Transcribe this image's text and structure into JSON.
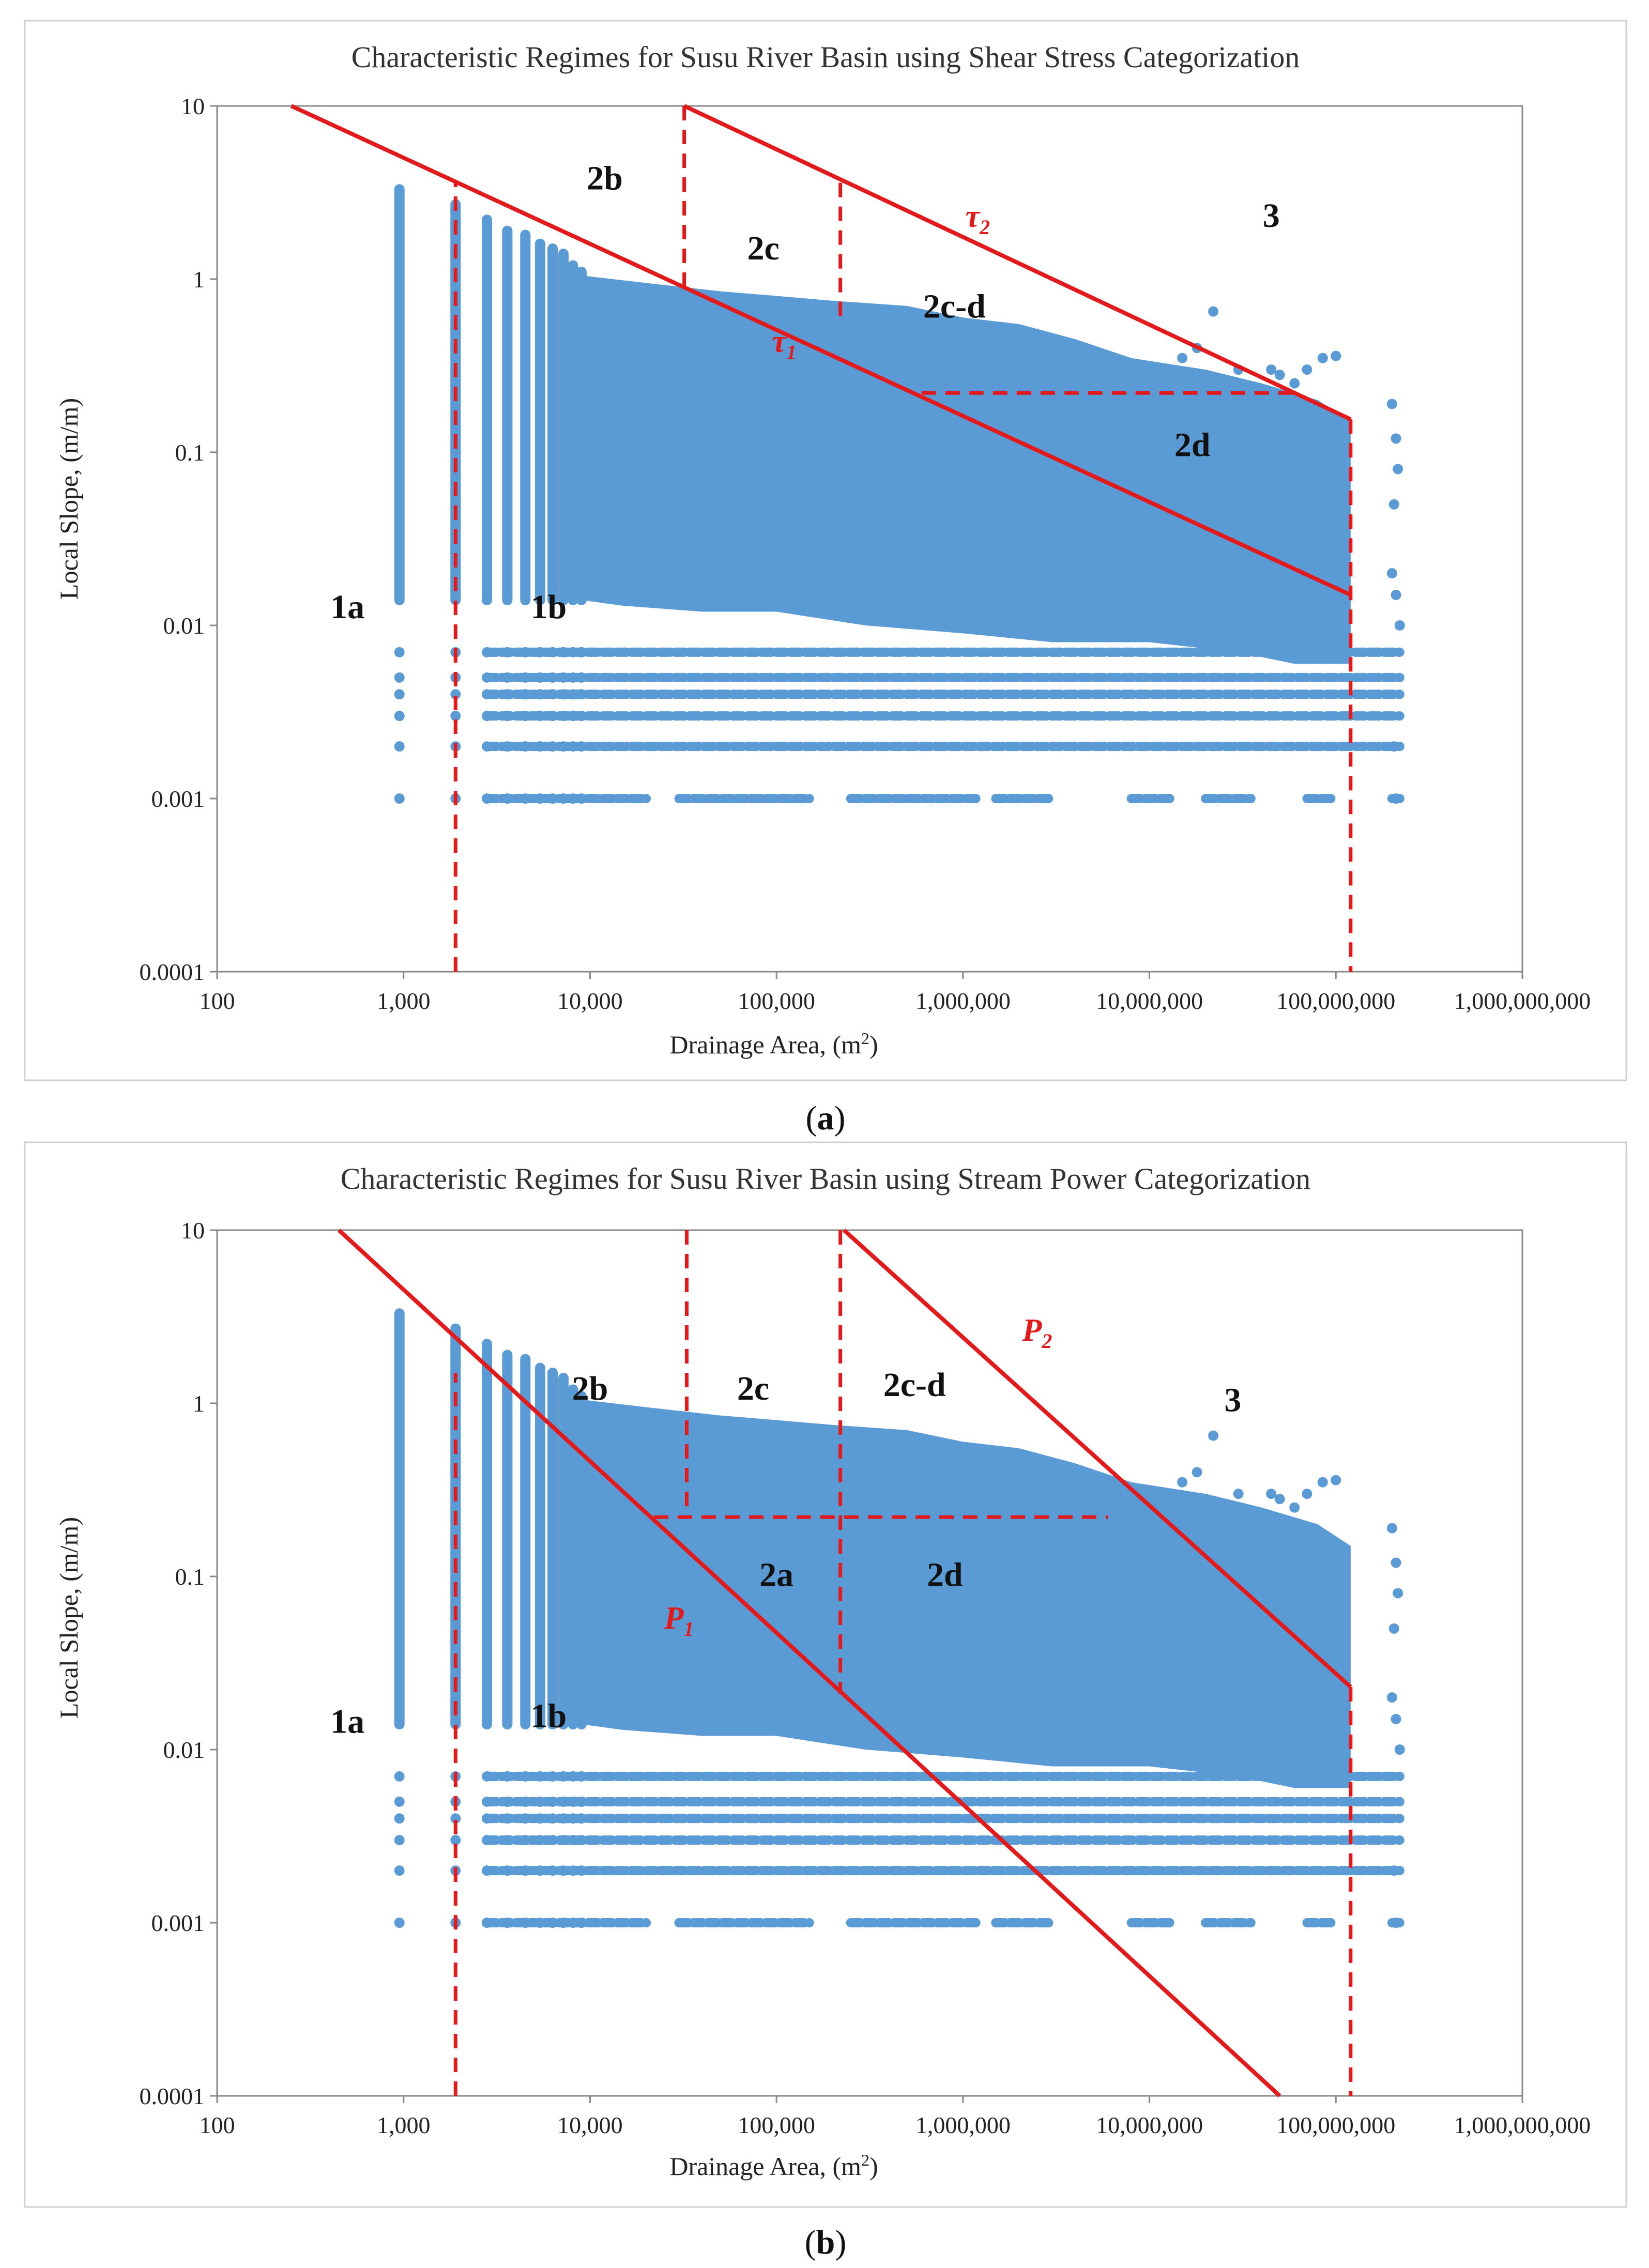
{
  "colors": {
    "points": "#5b9bd5",
    "lines": "#e31a1c",
    "text": "#222222"
  },
  "chart_data": [
    {
      "id": "a",
      "type": "scatter",
      "title": "Characteristic  Regimes  for  Susu  River  Basin  using  Shear  Stress  Categorization",
      "xlabel": "Drainage  Area,  (m",
      "xlabel_sup": "2",
      "xlabel_end": ")",
      "ylabel": "Local Slope, (m/m)",
      "xscale": "log",
      "yscale": "log",
      "xlim": [
        100,
        1000000000
      ],
      "ylim": [
        0.0001,
        10
      ],
      "xticks": [
        100,
        1000,
        10000,
        100000,
        1000000,
        10000000,
        100000000,
        1000000000
      ],
      "xtick_labels": [
        "100",
        "1,000",
        "10,000",
        "100,000",
        "1,000,000",
        "10,000,000",
        "100,000,000",
        "1,000,000,000"
      ],
      "yticks": [
        0.0001,
        0.001,
        0.01,
        0.1,
        1,
        10
      ],
      "ytick_labels": [
        "0.0001",
        "0.001",
        "0.01",
        "0.1",
        "1",
        "10"
      ],
      "caption": "a",
      "columns_x": [
        950,
        1900,
        2800,
        3600,
        4500,
        5400,
        6300,
        7200,
        8100,
        9000
      ],
      "columns_top": [
        3.3,
        2.7,
        2.2,
        1.9,
        1.8,
        1.6,
        1.5,
        1.4,
        1.2,
        1.1
      ],
      "cloud_top": [
        [
          9000,
          1.05
        ],
        [
          20000,
          0.95
        ],
        [
          50000,
          0.85
        ],
        [
          100000,
          0.8
        ],
        [
          200000,
          0.75
        ],
        [
          500000,
          0.7
        ],
        [
          1000000,
          0.6
        ],
        [
          2000000,
          0.55
        ],
        [
          4000000,
          0.45
        ],
        [
          8000000,
          0.35
        ],
        [
          20000000,
          0.3
        ],
        [
          40000000,
          0.25
        ],
        [
          80000000,
          0.2
        ],
        [
          120000000,
          0.15
        ]
      ],
      "cloud_bottom": [
        [
          120000000,
          0.006
        ],
        [
          60000000,
          0.006
        ],
        [
          30000000,
          0.007
        ],
        [
          10000000,
          0.008
        ],
        [
          3000000,
          0.008
        ],
        [
          1000000,
          0.009
        ],
        [
          300000,
          0.01
        ],
        [
          100000,
          0.012
        ],
        [
          40000,
          0.012
        ],
        [
          15000,
          0.013
        ],
        [
          9000,
          0.014
        ]
      ],
      "bands_y": [
        0.007,
        0.005,
        0.004,
        0.003,
        0.002
      ],
      "band_x_range": [
        2800,
        220000000
      ],
      "band_001_segments": [
        [
          2800,
          20000
        ],
        [
          30000,
          150000
        ],
        [
          250000,
          1200000
        ],
        [
          1500000,
          3000000
        ],
        [
          8000000,
          13000000
        ],
        [
          20000000,
          35000000
        ],
        [
          70000000,
          100000000
        ],
        [
          200000000,
          220000000
        ]
      ],
      "scatter_extra": [
        [
          15000000,
          0.35
        ],
        [
          18000000,
          0.4
        ],
        [
          22000000,
          0.65
        ],
        [
          30000000,
          0.3
        ],
        [
          45000000,
          0.3
        ],
        [
          50000000,
          0.28
        ],
        [
          60000000,
          0.25
        ],
        [
          70000000,
          0.3
        ],
        [
          85000000,
          0.35
        ],
        [
          100000000,
          0.36
        ],
        [
          200000000,
          0.19
        ],
        [
          210000000,
          0.12
        ],
        [
          215000000,
          0.08
        ],
        [
          205000000,
          0.05
        ],
        [
          200000000,
          0.02
        ],
        [
          210000000,
          0.015
        ],
        [
          220000000,
          0.01
        ],
        [
          205000000,
          0.002
        ],
        [
          210000000,
          0.001
        ],
        [
          12000000,
          0.12
        ],
        [
          25000000,
          0.05
        ],
        [
          35000000,
          0.03
        ],
        [
          60000000,
          0.04
        ],
        [
          80000000,
          0.015
        ]
      ],
      "solid_lines": [
        {
          "name": "tau1",
          "from": [
            250,
            10
          ],
          "to": [
            120000000,
            0.015
          ]
        },
        {
          "name": "tau2",
          "from": [
            32000,
            10
          ],
          "to": [
            120000000,
            0.155
          ]
        }
      ],
      "dashed_lines": [
        {
          "from": [
            1900,
            0.0001
          ],
          "to": [
            1900,
            3.6
          ]
        },
        {
          "from": [
            32000,
            10
          ],
          "to": [
            32000,
            0.88
          ]
        },
        {
          "from": [
            220000,
            3.6
          ],
          "to": [
            220000,
            0.6
          ]
        },
        {
          "from": [
            600000,
            0.22
          ],
          "to": [
            60000000,
            0.22
          ]
        },
        {
          "from": [
            120000000,
            0.155
          ],
          "to": [
            120000000,
            0.0001
          ]
        }
      ],
      "region_labels": [
        {
          "text": "2b",
          "x": 12000,
          "y": 3.3
        },
        {
          "text": "2c",
          "x": 85000,
          "y": 1.3
        },
        {
          "text": "3",
          "x": 45000000,
          "y": 2.0
        },
        {
          "text": "2c-d",
          "x": 900000,
          "y": 0.6
        },
        {
          "text": "2d",
          "x": 17000000,
          "y": 0.095
        },
        {
          "text": "1a",
          "x": 500,
          "y": 0.011
        },
        {
          "text": "1b",
          "x": 6000,
          "y": 0.011
        }
      ],
      "line_labels": [
        {
          "text": "τ",
          "sub": "1",
          "x": 110000,
          "y": 0.38
        },
        {
          "text": "τ",
          "sub": "2",
          "x": 1200000,
          "y": 2.0
        }
      ]
    },
    {
      "id": "b",
      "type": "scatter",
      "title": "Characteristic  Regimes  for  Susu  River  Basin  using  Stream  Power  Categorization",
      "xlabel": "Drainage  Area,  (m",
      "xlabel_sup": "2",
      "xlabel_end": ")",
      "ylabel": "Local Slope, (m/m)",
      "xscale": "log",
      "yscale": "log",
      "xlim": [
        100,
        1000000000
      ],
      "ylim": [
        0.0001,
        10
      ],
      "xticks": [
        100,
        1000,
        10000,
        100000,
        1000000,
        10000000,
        100000000,
        1000000000
      ],
      "xtick_labels": [
        "100",
        "1,000",
        "10,000",
        "100,000",
        "1,000,000",
        "10,000,000",
        "100,000,000",
        "1,000,000,000"
      ],
      "yticks": [
        0.0001,
        0.001,
        0.01,
        0.1,
        1,
        10
      ],
      "ytick_labels": [
        "0.0001",
        "0.001",
        "0.01",
        "0.1",
        "1",
        "10"
      ],
      "caption": "b",
      "columns_x": [
        950,
        1900,
        2800,
        3600,
        4500,
        5400,
        6300,
        7200,
        8100,
        9000
      ],
      "columns_top": [
        3.3,
        2.7,
        2.2,
        1.9,
        1.8,
        1.6,
        1.5,
        1.4,
        1.2,
        1.1
      ],
      "cloud_top": [
        [
          9000,
          1.05
        ],
        [
          20000,
          0.95
        ],
        [
          50000,
          0.85
        ],
        [
          100000,
          0.8
        ],
        [
          200000,
          0.75
        ],
        [
          500000,
          0.7
        ],
        [
          1000000,
          0.6
        ],
        [
          2000000,
          0.55
        ],
        [
          4000000,
          0.45
        ],
        [
          8000000,
          0.35
        ],
        [
          20000000,
          0.3
        ],
        [
          40000000,
          0.25
        ],
        [
          80000000,
          0.2
        ],
        [
          120000000,
          0.15
        ]
      ],
      "cloud_bottom": [
        [
          120000000,
          0.006
        ],
        [
          60000000,
          0.006
        ],
        [
          30000000,
          0.007
        ],
        [
          10000000,
          0.008
        ],
        [
          3000000,
          0.008
        ],
        [
          1000000,
          0.009
        ],
        [
          300000,
          0.01
        ],
        [
          100000,
          0.012
        ],
        [
          40000,
          0.012
        ],
        [
          15000,
          0.013
        ],
        [
          9000,
          0.014
        ]
      ],
      "bands_y": [
        0.007,
        0.005,
        0.004,
        0.003,
        0.002
      ],
      "band_x_range": [
        2800,
        220000000
      ],
      "band_001_segments": [
        [
          2800,
          20000
        ],
        [
          30000,
          150000
        ],
        [
          250000,
          1200000
        ],
        [
          1500000,
          3000000
        ],
        [
          8000000,
          13000000
        ],
        [
          20000000,
          35000000
        ],
        [
          70000000,
          100000000
        ],
        [
          200000000,
          220000000
        ]
      ],
      "scatter_extra": [
        [
          15000000,
          0.35
        ],
        [
          18000000,
          0.4
        ],
        [
          22000000,
          0.65
        ],
        [
          30000000,
          0.3
        ],
        [
          45000000,
          0.3
        ],
        [
          50000000,
          0.28
        ],
        [
          60000000,
          0.25
        ],
        [
          70000000,
          0.3
        ],
        [
          85000000,
          0.35
        ],
        [
          100000000,
          0.36
        ],
        [
          200000000,
          0.19
        ],
        [
          210000000,
          0.12
        ],
        [
          215000000,
          0.08
        ],
        [
          205000000,
          0.05
        ],
        [
          200000000,
          0.02
        ],
        [
          210000000,
          0.015
        ],
        [
          220000000,
          0.01
        ],
        [
          205000000,
          0.002
        ],
        [
          210000000,
          0.001
        ],
        [
          12000000,
          0.12
        ],
        [
          25000000,
          0.05
        ],
        [
          35000000,
          0.03
        ],
        [
          60000000,
          0.04
        ],
        [
          80000000,
          0.015
        ]
      ],
      "solid_lines": [
        {
          "name": "P1",
          "from": [
            450,
            10
          ],
          "to": [
            50000000,
            0.0001
          ]
        },
        {
          "name": "P2",
          "from": [
            230000,
            10
          ],
          "to": [
            120000000,
            0.023
          ]
        }
      ],
      "dashed_lines": [
        {
          "from": [
            1900,
            0.0001
          ],
          "to": [
            1900,
            1.5
          ]
        },
        {
          "from": [
            33000,
            10
          ],
          "to": [
            33000,
            0.22
          ]
        },
        {
          "from": [
            220000,
            10
          ],
          "to": [
            220000,
            0.021
          ]
        },
        {
          "from": [
            22000,
            0.22
          ],
          "to": [
            6000000,
            0.22
          ]
        },
        {
          "from": [
            120000000,
            0.023
          ],
          "to": [
            120000000,
            0.0001
          ]
        }
      ],
      "region_labels": [
        {
          "text": "2b",
          "x": 10000,
          "y": 1.05
        },
        {
          "text": "2c",
          "x": 75000,
          "y": 1.05
        },
        {
          "text": "2c-d",
          "x": 550000,
          "y": 1.1
        },
        {
          "text": "3",
          "x": 28000000,
          "y": 0.9
        },
        {
          "text": "2a",
          "x": 100000,
          "y": 0.088
        },
        {
          "text": "2d",
          "x": 800000,
          "y": 0.088
        },
        {
          "text": "1a",
          "x": 500,
          "y": 0.0125
        },
        {
          "text": "1b",
          "x": 6000,
          "y": 0.0135
        }
      ],
      "line_labels": [
        {
          "text": "P",
          "sub": "1",
          "x": 30000,
          "y": 0.05
        },
        {
          "text": "P",
          "sub": "2",
          "x": 2500000,
          "y": 2.3
        }
      ]
    }
  ]
}
